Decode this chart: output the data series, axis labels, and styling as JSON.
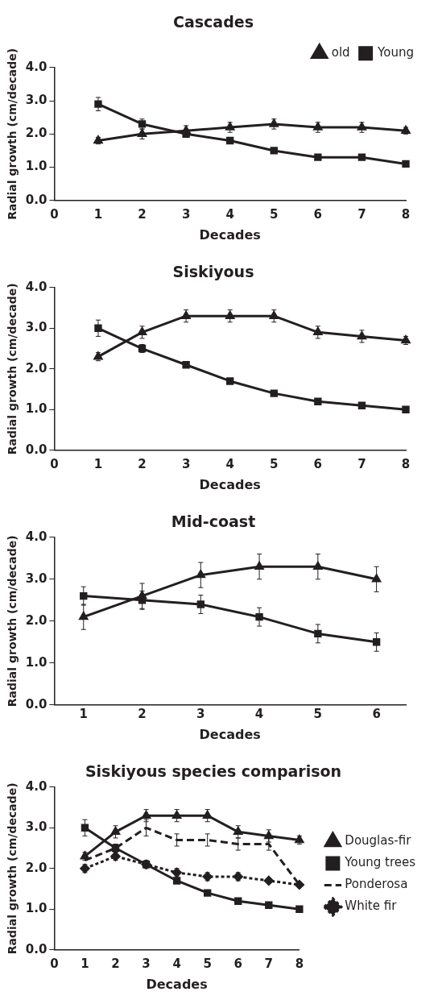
{
  "chart_data": [
    {
      "type": "line",
      "title": "Cascades",
      "xlabel": "Decades",
      "ylabel": "Radial growth (cm/decade)",
      "x": [
        1,
        2,
        3,
        4,
        5,
        6,
        7,
        8
      ],
      "xlim": [
        0,
        8
      ],
      "xticks": [
        0,
        1,
        2,
        3,
        4,
        5,
        6,
        7,
        8
      ],
      "ylim": [
        0,
        4
      ],
      "yticks": [
        {
          "value": 0,
          "label": "0.0"
        },
        {
          "value": 1,
          "label": "1.0"
        },
        {
          "value": 2,
          "label": "2.0"
        },
        {
          "value": 3,
          "label": "3.0"
        },
        {
          "value": 4,
          "label": "4.0"
        }
      ],
      "grid": false,
      "legend": "top right",
      "line_style": "solid",
      "series": [
        {
          "name": "old",
          "color": "#231f20",
          "marker": "triangle",
          "values": [
            1.8,
            2.0,
            2.1,
            2.2,
            2.3,
            2.2,
            2.2,
            2.1
          ],
          "errors": [
            0.1,
            0.15,
            0.15,
            0.15,
            0.15,
            0.15,
            0.15,
            0.1
          ]
        },
        {
          "name": "Young",
          "color": "#231f20",
          "marker": "square",
          "values": [
            2.9,
            2.3,
            2.0,
            1.8,
            1.5,
            1.3,
            1.3,
            1.1
          ],
          "errors": [
            0.2,
            0.15,
            null,
            null,
            null,
            null,
            null,
            null
          ]
        }
      ]
    },
    {
      "type": "line",
      "title": "Siskiyous",
      "xlabel": "Decades",
      "ylabel": "Radial growth (cm/decade)",
      "x": [
        1,
        2,
        3,
        4,
        5,
        6,
        7,
        8
      ],
      "xlim": [
        0,
        8
      ],
      "xticks": [
        0,
        1,
        2,
        3,
        4,
        5,
        6,
        7,
        8
      ],
      "ylim": [
        0,
        4
      ],
      "yticks": [
        {
          "value": 0,
          "label": "0.0"
        },
        {
          "value": 1,
          "label": "1.0"
        },
        {
          "value": 2,
          "label": "2.0"
        },
        {
          "value": 3,
          "label": "3.0"
        },
        {
          "value": 4,
          "label": "4.0"
        }
      ],
      "grid": false,
      "legend": false,
      "line_style": "solid",
      "series": [
        {
          "color": "#231f20",
          "marker": "triangle",
          "values": [
            2.3,
            2.9,
            3.3,
            3.3,
            3.3,
            2.9,
            2.8,
            2.7
          ],
          "errors": [
            0.1,
            0.15,
            0.15,
            0.15,
            0.15,
            0.15,
            0.15,
            0.1
          ]
        },
        {
          "color": "#231f20",
          "marker": "square",
          "values": [
            3.0,
            2.5,
            2.1,
            1.7,
            1.4,
            1.2,
            1.1,
            1.0
          ],
          "errors": [
            0.2,
            0.1,
            null,
            null,
            null,
            null,
            null,
            null
          ]
        }
      ]
    },
    {
      "type": "line",
      "title": "Mid-coast",
      "xlabel": "Decades",
      "ylabel": "Radial growth (cm/decade)",
      "categories": [
        "1",
        "2",
        "3",
        "4",
        "5",
        "6"
      ],
      "ylim": [
        0,
        4
      ],
      "yticks": [
        {
          "value": 0,
          "label": "0.0"
        },
        {
          "value": 1,
          "label": "1.0"
        },
        {
          "value": 2,
          "label": "2.0"
        },
        {
          "value": 3,
          "label": "3.0"
        },
        {
          "value": 4,
          "label": "4.0"
        }
      ],
      "grid": false,
      "legend": false,
      "line_style": "solid",
      "series": [
        {
          "color": "#231f20",
          "marker": "triangle",
          "values": [
            2.1,
            2.6,
            3.1,
            3.3,
            3.3,
            3.0
          ],
          "errors": [
            0.3,
            0.3,
            0.3,
            0.3,
            0.3,
            0.3
          ]
        },
        {
          "color": "#231f20",
          "marker": "square",
          "values": [
            2.6,
            2.5,
            2.4,
            2.1,
            1.7,
            1.5
          ],
          "errors": [
            0.22,
            0.22,
            0.22,
            0.22,
            0.22,
            0.22
          ]
        }
      ]
    },
    {
      "type": "line",
      "title": "Siskiyous species comparison",
      "xlabel": "Decades",
      "ylabel": "Radial growth (cm/decade)",
      "x": [
        1,
        2,
        3,
        4,
        5,
        6,
        7,
        8
      ],
      "xlim": [
        0,
        8
      ],
      "xticks": [
        0,
        1,
        2,
        3,
        4,
        5,
        6,
        7,
        8
      ],
      "ylim": [
        0,
        4
      ],
      "yticks": [
        {
          "value": 0,
          "label": "0.0"
        },
        {
          "value": 1,
          "label": "1.0"
        },
        {
          "value": 2,
          "label": "2.0"
        },
        {
          "value": 3,
          "label": "3.0"
        },
        {
          "value": 4,
          "label": "4.0"
        }
      ],
      "grid": false,
      "legend": "right",
      "series": [
        {
          "name": "Douglas-fir",
          "color": "#231f20",
          "marker": "triangle",
          "line_style": "solid",
          "values": [
            2.3,
            2.9,
            3.3,
            3.3,
            3.3,
            2.9,
            2.8,
            2.7
          ],
          "errors": [
            0.1,
            0.15,
            0.15,
            0.15,
            0.15,
            0.15,
            0.15,
            0.1
          ]
        },
        {
          "name": "Young trees",
          "color": "#231f20",
          "marker": "square",
          "line_style": "solid",
          "values": [
            3.0,
            2.5,
            2.1,
            1.7,
            1.4,
            1.2,
            1.1,
            1.0
          ],
          "errors": [
            0.2,
            0.1,
            null,
            null,
            null,
            null,
            null,
            null
          ]
        },
        {
          "name": "Ponderosa",
          "color": "#231f20",
          "marker": "none",
          "line_style": "dashed",
          "values": [
            2.2,
            2.5,
            3.0,
            2.7,
            2.7,
            2.6,
            2.6,
            1.6
          ],
          "errors": [
            null,
            null,
            0.2,
            0.15,
            0.15,
            0.15,
            0.15,
            null
          ]
        },
        {
          "name": "White fir",
          "color": "#231f20",
          "marker": "diamond",
          "line_style": "dotted",
          "values": [
            2.0,
            2.3,
            2.1,
            1.9,
            1.8,
            1.8,
            1.7,
            1.6
          ],
          "errors": [
            0.1,
            0.1,
            0.1,
            0.1,
            0.1,
            0.1,
            null,
            null
          ]
        }
      ]
    }
  ]
}
